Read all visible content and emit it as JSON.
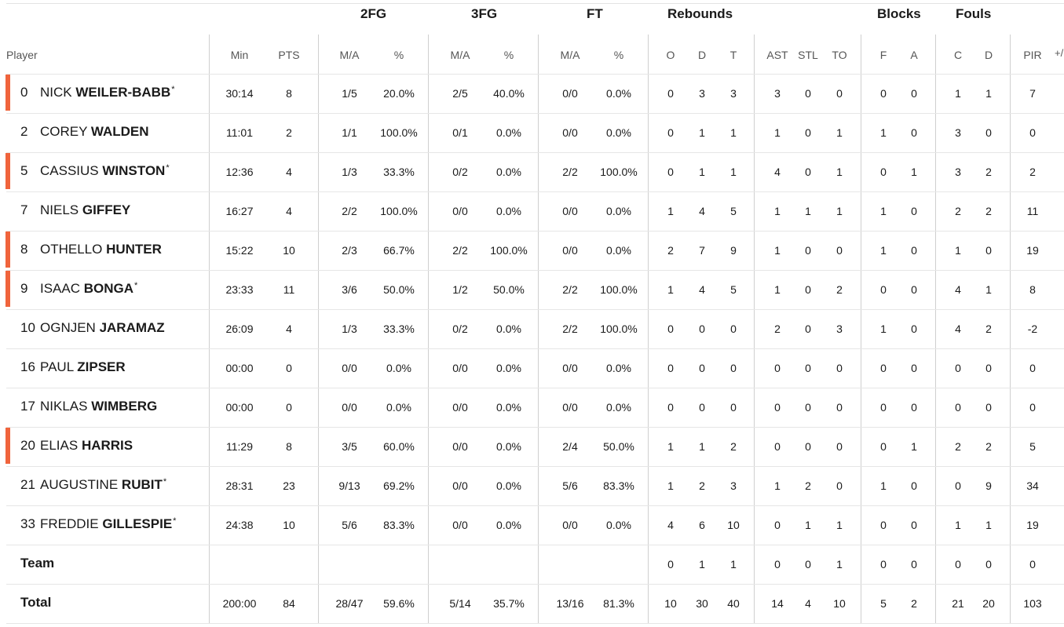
{
  "groups": {
    "fg2": "2FG",
    "fg3": "3FG",
    "ft": "FT",
    "rebounds": "Rebounds",
    "blocks": "Blocks",
    "fouls": "Fouls"
  },
  "headers": {
    "player": "Player",
    "min": "Min",
    "pts": "PTS",
    "fg2_ma": "M/A",
    "fg2_pct": "%",
    "fg3_ma": "M/A",
    "fg3_pct": "%",
    "ft_ma": "M/A",
    "ft_pct": "%",
    "reb_o": "O",
    "reb_d": "D",
    "reb_t": "T",
    "ast": "AST",
    "stl": "STL",
    "to": "TO",
    "blk_f": "F",
    "blk_a": "A",
    "foul_c": "C",
    "foul_d": "D",
    "pir": "PIR",
    "plus_minus": "+/"
  },
  "accent_color": "#f0643c",
  "players": [
    {
      "num": "0",
      "first": "NICK",
      "last": "WEILER-BABB",
      "star": "*",
      "starter": true,
      "min": "30:14",
      "pts": "8",
      "fg2_ma": "1/5",
      "fg2_pct": "20.0%",
      "fg3_ma": "2/5",
      "fg3_pct": "40.0%",
      "ft_ma": "0/0",
      "ft_pct": "0.0%",
      "reb_o": "0",
      "reb_d": "3",
      "reb_t": "3",
      "ast": "3",
      "stl": "0",
      "to": "0",
      "blk_f": "0",
      "blk_a": "0",
      "foul_c": "1",
      "foul_d": "1",
      "pir": "7"
    },
    {
      "num": "2",
      "first": "COREY",
      "last": "WALDEN",
      "star": "",
      "starter": false,
      "min": "11:01",
      "pts": "2",
      "fg2_ma": "1/1",
      "fg2_pct": "100.0%",
      "fg3_ma": "0/1",
      "fg3_pct": "0.0%",
      "ft_ma": "0/0",
      "ft_pct": "0.0%",
      "reb_o": "0",
      "reb_d": "1",
      "reb_t": "1",
      "ast": "1",
      "stl": "0",
      "to": "1",
      "blk_f": "1",
      "blk_a": "0",
      "foul_c": "3",
      "foul_d": "0",
      "pir": "0"
    },
    {
      "num": "5",
      "first": "CASSIUS",
      "last": "WINSTON",
      "star": "*",
      "starter": true,
      "min": "12:36",
      "pts": "4",
      "fg2_ma": "1/3",
      "fg2_pct": "33.3%",
      "fg3_ma": "0/2",
      "fg3_pct": "0.0%",
      "ft_ma": "2/2",
      "ft_pct": "100.0%",
      "reb_o": "0",
      "reb_d": "1",
      "reb_t": "1",
      "ast": "4",
      "stl": "0",
      "to": "1",
      "blk_f": "0",
      "blk_a": "1",
      "foul_c": "3",
      "foul_d": "2",
      "pir": "2"
    },
    {
      "num": "7",
      "first": "NIELS",
      "last": "GIFFEY",
      "star": "",
      "starter": false,
      "min": "16:27",
      "pts": "4",
      "fg2_ma": "2/2",
      "fg2_pct": "100.0%",
      "fg3_ma": "0/0",
      "fg3_pct": "0.0%",
      "ft_ma": "0/0",
      "ft_pct": "0.0%",
      "reb_o": "1",
      "reb_d": "4",
      "reb_t": "5",
      "ast": "1",
      "stl": "1",
      "to": "1",
      "blk_f": "1",
      "blk_a": "0",
      "foul_c": "2",
      "foul_d": "2",
      "pir": "11"
    },
    {
      "num": "8",
      "first": "OTHELLO",
      "last": "HUNTER",
      "star": "",
      "starter": true,
      "min": "15:22",
      "pts": "10",
      "fg2_ma": "2/3",
      "fg2_pct": "66.7%",
      "fg3_ma": "2/2",
      "fg3_pct": "100.0%",
      "ft_ma": "0/0",
      "ft_pct": "0.0%",
      "reb_o": "2",
      "reb_d": "7",
      "reb_t": "9",
      "ast": "1",
      "stl": "0",
      "to": "0",
      "blk_f": "1",
      "blk_a": "0",
      "foul_c": "1",
      "foul_d": "0",
      "pir": "19"
    },
    {
      "num": "9",
      "first": "ISAAC",
      "last": "BONGA",
      "star": "*",
      "starter": true,
      "min": "23:33",
      "pts": "11",
      "fg2_ma": "3/6",
      "fg2_pct": "50.0%",
      "fg3_ma": "1/2",
      "fg3_pct": "50.0%",
      "ft_ma": "2/2",
      "ft_pct": "100.0%",
      "reb_o": "1",
      "reb_d": "4",
      "reb_t": "5",
      "ast": "1",
      "stl": "0",
      "to": "2",
      "blk_f": "0",
      "blk_a": "0",
      "foul_c": "4",
      "foul_d": "1",
      "pir": "8"
    },
    {
      "num": "10",
      "first": "OGNJEN",
      "last": "JARAMAZ",
      "star": "",
      "starter": false,
      "min": "26:09",
      "pts": "4",
      "fg2_ma": "1/3",
      "fg2_pct": "33.3%",
      "fg3_ma": "0/2",
      "fg3_pct": "0.0%",
      "ft_ma": "2/2",
      "ft_pct": "100.0%",
      "reb_o": "0",
      "reb_d": "0",
      "reb_t": "0",
      "ast": "2",
      "stl": "0",
      "to": "3",
      "blk_f": "1",
      "blk_a": "0",
      "foul_c": "4",
      "foul_d": "2",
      "pir": "-2"
    },
    {
      "num": "16",
      "first": "PAUL",
      "last": "ZIPSER",
      "star": "",
      "starter": false,
      "min": "00:00",
      "pts": "0",
      "fg2_ma": "0/0",
      "fg2_pct": "0.0%",
      "fg3_ma": "0/0",
      "fg3_pct": "0.0%",
      "ft_ma": "0/0",
      "ft_pct": "0.0%",
      "reb_o": "0",
      "reb_d": "0",
      "reb_t": "0",
      "ast": "0",
      "stl": "0",
      "to": "0",
      "blk_f": "0",
      "blk_a": "0",
      "foul_c": "0",
      "foul_d": "0",
      "pir": "0"
    },
    {
      "num": "17",
      "first": "NIKLAS",
      "last": "WIMBERG",
      "star": "",
      "starter": false,
      "min": "00:00",
      "pts": "0",
      "fg2_ma": "0/0",
      "fg2_pct": "0.0%",
      "fg3_ma": "0/0",
      "fg3_pct": "0.0%",
      "ft_ma": "0/0",
      "ft_pct": "0.0%",
      "reb_o": "0",
      "reb_d": "0",
      "reb_t": "0",
      "ast": "0",
      "stl": "0",
      "to": "0",
      "blk_f": "0",
      "blk_a": "0",
      "foul_c": "0",
      "foul_d": "0",
      "pir": "0"
    },
    {
      "num": "20",
      "first": "ELIAS",
      "last": "HARRIS",
      "star": "",
      "starter": true,
      "min": "11:29",
      "pts": "8",
      "fg2_ma": "3/5",
      "fg2_pct": "60.0%",
      "fg3_ma": "0/0",
      "fg3_pct": "0.0%",
      "ft_ma": "2/4",
      "ft_pct": "50.0%",
      "reb_o": "1",
      "reb_d": "1",
      "reb_t": "2",
      "ast": "0",
      "stl": "0",
      "to": "0",
      "blk_f": "0",
      "blk_a": "1",
      "foul_c": "2",
      "foul_d": "2",
      "pir": "5"
    },
    {
      "num": "21",
      "first": "AUGUSTINE",
      "last": "RUBIT",
      "star": "*",
      "starter": false,
      "min": "28:31",
      "pts": "23",
      "fg2_ma": "9/13",
      "fg2_pct": "69.2%",
      "fg3_ma": "0/0",
      "fg3_pct": "0.0%",
      "ft_ma": "5/6",
      "ft_pct": "83.3%",
      "reb_o": "1",
      "reb_d": "2",
      "reb_t": "3",
      "ast": "1",
      "stl": "2",
      "to": "0",
      "blk_f": "1",
      "blk_a": "0",
      "foul_c": "0",
      "foul_d": "9",
      "pir": "34"
    },
    {
      "num": "33",
      "first": "FREDDIE",
      "last": "GILLESPIE",
      "star": "*",
      "starter": false,
      "min": "24:38",
      "pts": "10",
      "fg2_ma": "5/6",
      "fg2_pct": "83.3%",
      "fg3_ma": "0/0",
      "fg3_pct": "0.0%",
      "ft_ma": "0/0",
      "ft_pct": "0.0%",
      "reb_o": "4",
      "reb_d": "6",
      "reb_t": "10",
      "ast": "0",
      "stl": "1",
      "to": "1",
      "blk_f": "0",
      "blk_a": "0",
      "foul_c": "1",
      "foul_d": "1",
      "pir": "19"
    }
  ],
  "team": {
    "label": "Team",
    "min": "",
    "pts": "",
    "fg2_ma": "",
    "fg2_pct": "",
    "fg3_ma": "",
    "fg3_pct": "",
    "ft_ma": "",
    "ft_pct": "",
    "reb_o": "0",
    "reb_d": "1",
    "reb_t": "1",
    "ast": "0",
    "stl": "0",
    "to": "1",
    "blk_f": "0",
    "blk_a": "0",
    "foul_c": "0",
    "foul_d": "0",
    "pir": "0"
  },
  "total": {
    "label": "Total",
    "min": "200:00",
    "pts": "84",
    "fg2_ma": "28/47",
    "fg2_pct": "59.6%",
    "fg3_ma": "5/14",
    "fg3_pct": "35.7%",
    "ft_ma": "13/16",
    "ft_pct": "81.3%",
    "reb_o": "10",
    "reb_d": "30",
    "reb_t": "40",
    "ast": "14",
    "stl": "4",
    "to": "10",
    "blk_f": "5",
    "blk_a": "2",
    "foul_c": "21",
    "foul_d": "20",
    "pir": "103"
  }
}
